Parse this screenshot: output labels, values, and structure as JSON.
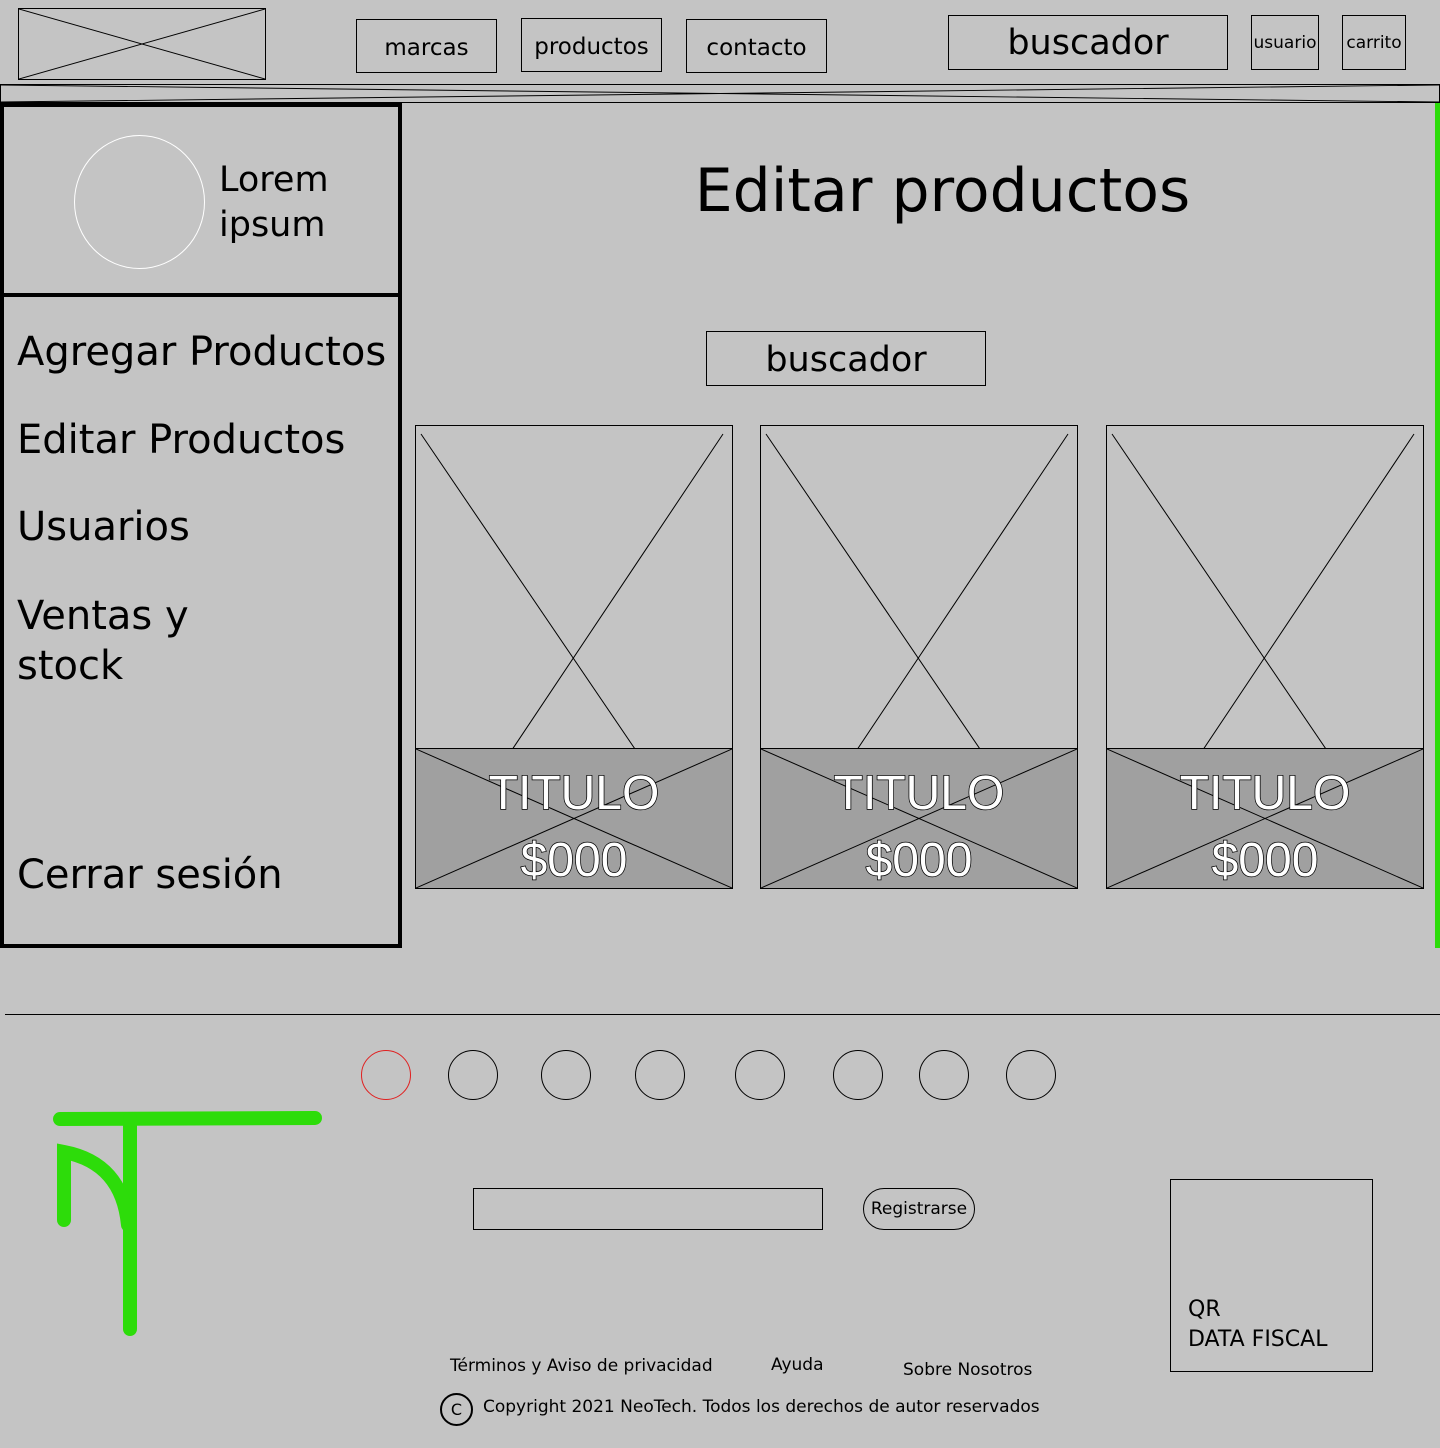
{
  "header": {
    "nav": [
      "marcas",
      "productos",
      "contacto"
    ],
    "search_label": "buscador",
    "user_label": "usuario",
    "cart_label": "carrito"
  },
  "sidebar": {
    "profile_name": "Lorem ipsum",
    "items": [
      {
        "label": "Agregar Productos"
      },
      {
        "label": "Editar Productos"
      },
      {
        "label": "Usuarios"
      },
      {
        "label": "Ventas y stock"
      }
    ],
    "logout_label": "Cerrar sesión"
  },
  "main": {
    "title": "Editar productos",
    "search_label": "buscador",
    "products": [
      {
        "title": "TITULO",
        "price": "$000"
      },
      {
        "title": "TITULO",
        "price": "$000"
      },
      {
        "title": "TITULO",
        "price": "$000"
      }
    ]
  },
  "footer": {
    "register_label": "Registrarse",
    "qr_label": "QR",
    "fiscal_label": "DATA FISCAL",
    "links": [
      "Términos y Aviso de privacidad",
      "Ayuda",
      "Sobre Nosotros"
    ],
    "copyright": "Copyright 2021 NeoTech. Todos los derechos de autor reservados",
    "copyright_symbol": "C"
  },
  "colors": {
    "background": "#c4c4c4",
    "accent_green": "#2ddc0a",
    "card_band": "#a0a0a0",
    "active_social": "#e02020"
  }
}
